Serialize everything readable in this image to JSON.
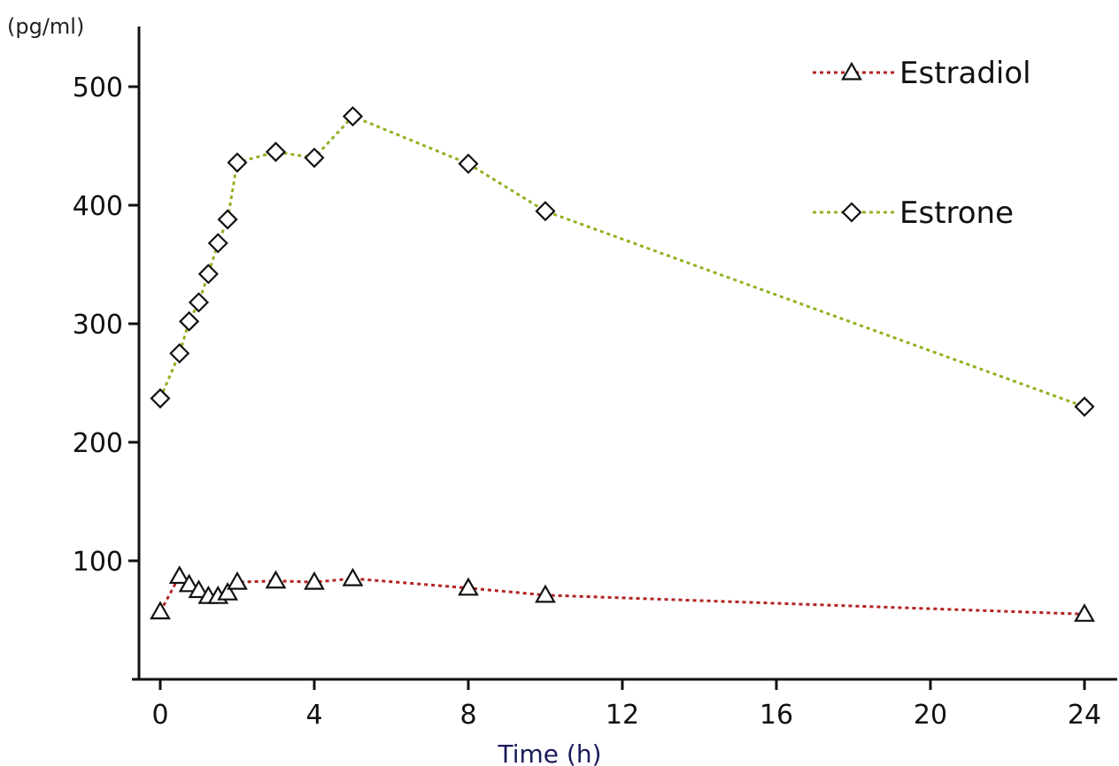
{
  "chart_data": {
    "type": "line",
    "title": "",
    "xlabel": "Time (h)",
    "ylabel": "(pg/ml)",
    "xlim": [
      0,
      24
    ],
    "ylim": [
      0,
      500
    ],
    "xticks": [
      0,
      4,
      8,
      12,
      16,
      20,
      24
    ],
    "yticks": [
      100,
      200,
      300,
      400,
      500
    ],
    "grid": false,
    "legend_position": "top-right",
    "series": [
      {
        "name": "Estradiol",
        "color": "#b22222",
        "marker": "triangle",
        "x": [
          0,
          0.5,
          0.75,
          1,
          1.25,
          1.5,
          1.75,
          2,
          3,
          4,
          5,
          8,
          10,
          24
        ],
        "y": [
          57,
          87,
          80,
          75,
          70,
          70,
          73,
          82,
          83,
          82,
          85,
          77,
          71,
          55
        ]
      },
      {
        "name": "Estrone",
        "color": "#8fb31f",
        "marker": "diamond",
        "x": [
          0,
          0.5,
          0.75,
          1,
          1.25,
          1.5,
          1.75,
          2,
          3,
          4,
          5,
          8,
          10,
          24
        ],
        "y": [
          237,
          275,
          302,
          318,
          342,
          368,
          388,
          436,
          445,
          440,
          475,
          435,
          395,
          230
        ]
      }
    ]
  }
}
